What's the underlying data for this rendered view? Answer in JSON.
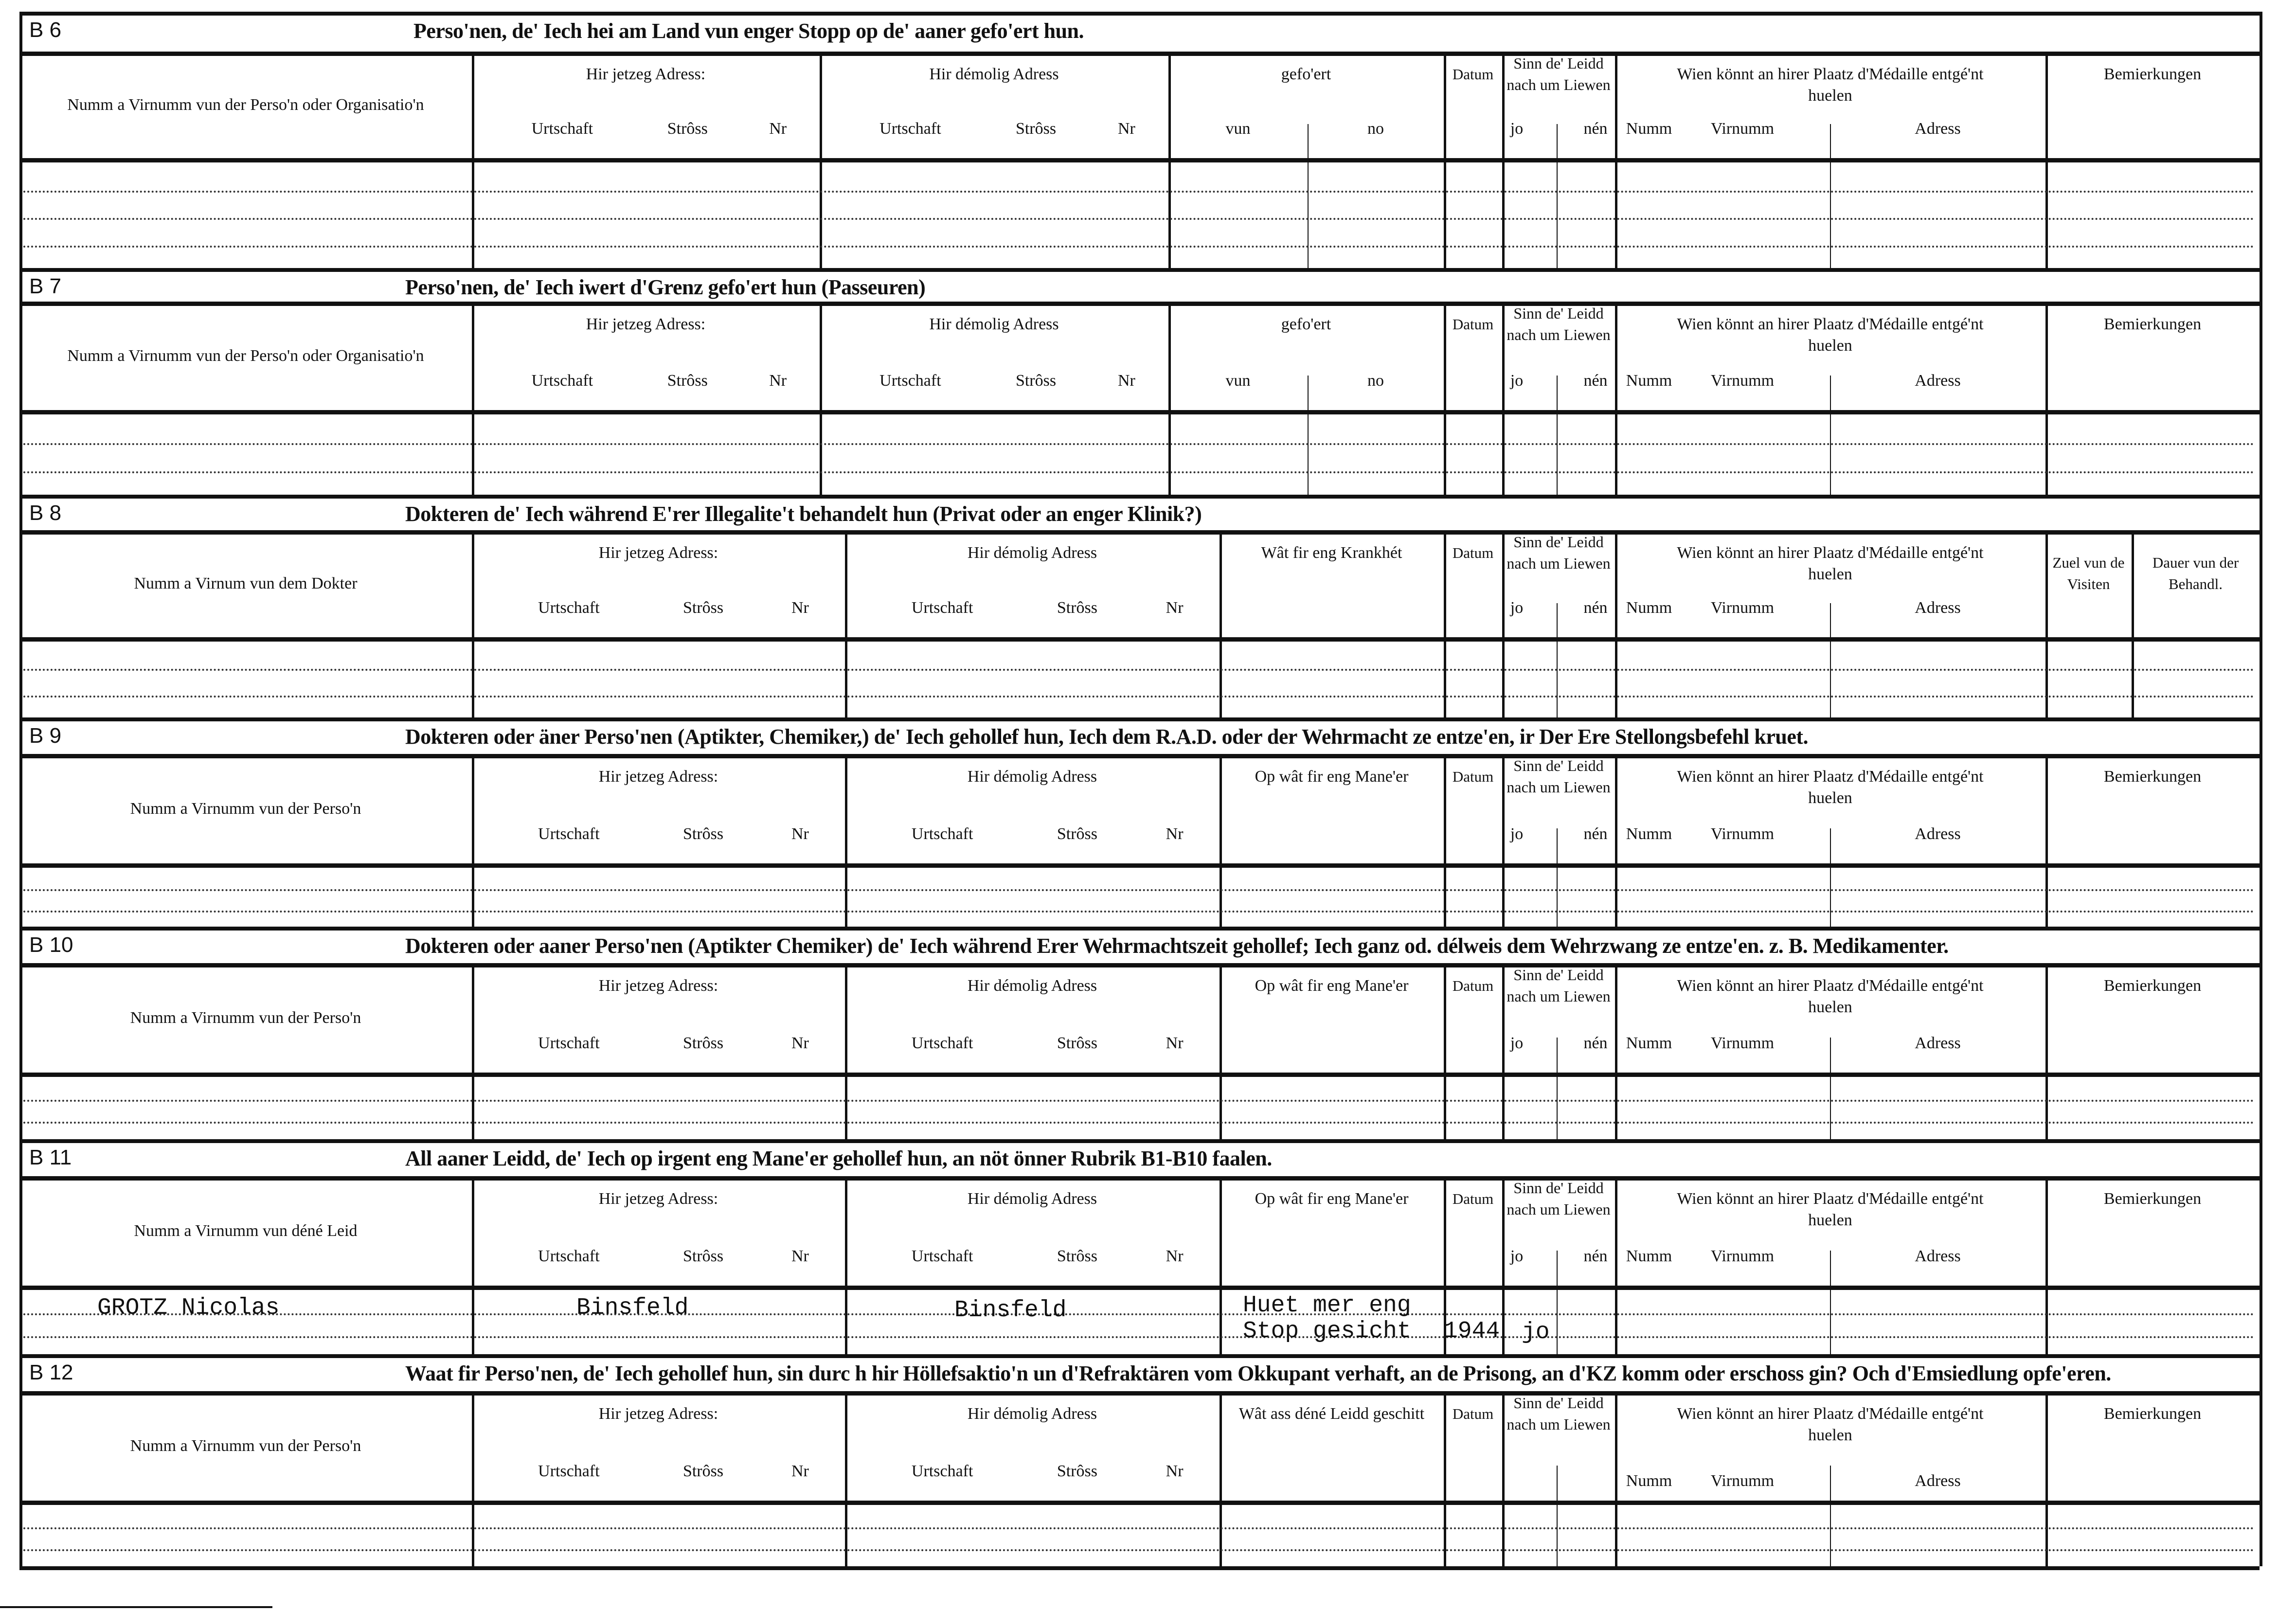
{
  "labels": {
    "current_address": "Hir jetzeg Adress:",
    "former_address": "Hir démolig Adress",
    "urtschaft": "Urtschaft",
    "stross": "Strôss",
    "nr": "Nr",
    "datum": "Datum",
    "sinn": "Sinn de' Leidd nach um Liewen",
    "jo": "jo",
    "nen": "nén",
    "wien": "Wien könnt an hirer Plaatz d'Médaille entgé'nt huelen",
    "numm": "Numm",
    "virnumm": "Virnumm",
    "adress": "Adress",
    "bemierkungen": "Bemierkungen",
    "gefoert": "gefo'ert",
    "vun": "vun",
    "no": "no"
  },
  "sections": [
    {
      "code": "B 6",
      "title": "Perso'nen, de' Iech hei am Land vun enger Stopp  op de' aaner gefo'ert hun.",
      "name_header": "Numm a Virnumm vun der Perso'n oder Organisatio'n",
      "col3": "gefoert",
      "last": "bemierkungen",
      "rows": 3
    },
    {
      "code": "B 7",
      "title": "Perso'nen, de' Iech iwert d'Grenz gefo'ert hun (Passeuren)",
      "name_header": "Numm a Virnumm vun der Perso'n oder Organisatio'n",
      "col3": "gefoert",
      "last": "bemierkungen",
      "rows": 2
    },
    {
      "code": "B 8",
      "title": "Dokteren de' Iech während E'rer Illegalite't behandelt hun (Privat oder an enger Klinik?)",
      "name_header": "Numm a Virnum vun dem Dokter",
      "col3_text": "Wât fir eng Krankhét",
      "last": "visits",
      "zuel": "Zuel vun de Visiten",
      "dauer": "Dauer vun der Behandl.",
      "rows": 2
    },
    {
      "code": "B 9",
      "title": "Dokteren oder äner Perso'nen (Aptikter, Chemiker,) de' Iech gehollef hun, Iech dem R.A.D. oder der Wehrmacht ze entze'en, ir Der Ere Stellongsbefehl kruet.",
      "name_header": "Numm a Virnumm vun der Perso'n",
      "col3_text": "Op wât fir eng Mane'er",
      "last": "bemierkungen",
      "rows": 2
    },
    {
      "code": "B 10",
      "title": "Dokteren oder aaner Perso'nen (Aptikter Chemiker) de' Iech während Erer Wehrmachtszeit gehollef; Iech ganz od. délweis dem Wehrzwang ze entze'en. z. B. Medikamenter.",
      "name_header": "Numm a Virnumm vun der Perso'n",
      "col3_text": "Op wât fir eng Mane'er",
      "last": "bemierkungen",
      "rows": 2
    },
    {
      "code": "B 11",
      "title": "All aaner Leidd, de' Iech op irgent eng Mane'er gehollef hun, an nöt önner Rubrik B1-B10 faalen.",
      "name_header": "Numm a Virnumm vun déné Leid",
      "col3_text": "Op wât fir eng Mane'er",
      "last": "bemierkungen",
      "rows": 2,
      "entry": {
        "name": "GROTZ Nicolas",
        "current_urtschaft": "Binsfeld",
        "former_urtschaft": "Binsfeld",
        "manner_line1": "Huet mer eng",
        "manner_line2": "Stop gesicht",
        "datum": "1944",
        "sinn": "jo"
      }
    },
    {
      "code": "B 12",
      "title": "Waat fir Perso'nen, de' Iech gehollef hun, sin durc h hir Höllefsaktio'n un d'Refraktären vom Okkupant verhaft, an de Prisong, an d'KZ komm oder  erschoss gin? Och d'Emsiedlung opfe'eren.",
      "name_header": "Numm a Virnumm vun der Perso'n",
      "col3_text": "Wât ass déné Leidd geschitt",
      "last": "bemierkungen",
      "rows": 2,
      "no_jo_nen": true
    }
  ]
}
